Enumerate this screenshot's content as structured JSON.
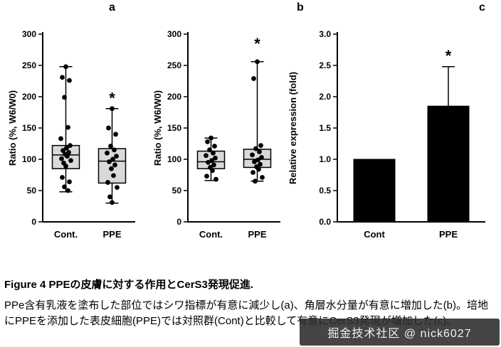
{
  "chart_data": [
    {
      "type": "box",
      "panel_label": "a",
      "ylabel": "Ratio (%, W6/W0)",
      "ylim": [
        0,
        300
      ],
      "yticks": [
        0,
        50,
        100,
        150,
        200,
        250,
        300
      ],
      "ytick_labels": [
        "0",
        "50",
        "100",
        "150",
        "200",
        "250",
        "300"
      ],
      "categories": [
        "Cont.",
        "PPE"
      ],
      "box_fill": "#d9d9d9",
      "boxes": [
        {
          "q1": 85,
          "median": 107,
          "q3": 122,
          "whisker_low": 48,
          "whisker_high": 248,
          "points": [
            248,
            231,
            226,
            199,
            151,
            133,
            122,
            118,
            114,
            111,
            108,
            105,
            101,
            98,
            94,
            89,
            71,
            64,
            56,
            50
          ],
          "sig": "",
          "sig_y": 0
        },
        {
          "q1": 62,
          "median": 97,
          "q3": 117,
          "whisker_low": 30,
          "whisker_high": 181,
          "points": [
            181,
            150,
            140,
            121,
            115,
            110,
            105,
            100,
            96,
            91,
            85,
            74,
            63,
            55,
            40,
            31
          ],
          "sig": "*",
          "sig_y": 196
        }
      ]
    },
    {
      "type": "box",
      "panel_label": "b",
      "ylabel": "Ratio (%, W6/W0)",
      "ylim": [
        0,
        300
      ],
      "yticks": [
        0,
        50,
        100,
        150,
        200,
        250,
        300
      ],
      "ytick_labels": [
        "0",
        "50",
        "100",
        "150",
        "200",
        "250",
        "300"
      ],
      "categories": [
        "Cont.",
        "PPE"
      ],
      "box_fill": "#d9d9d9",
      "boxes": [
        {
          "q1": 85,
          "median": 96,
          "q3": 113,
          "whisker_low": 66,
          "whisker_high": 134,
          "points": [
            134,
            128,
            121,
            115,
            110,
            106,
            102,
            98,
            95,
            91,
            87,
            82,
            73,
            68
          ],
          "sig": "",
          "sig_y": 0
        },
        {
          "q1": 87,
          "median": 100,
          "q3": 116,
          "whisker_low": 65,
          "whisker_high": 256,
          "points": [
            256,
            229,
            122,
            117,
            112,
            107,
            103,
            99,
            96,
            92,
            88,
            84,
            79,
            71,
            65
          ],
          "sig": "*",
          "sig_y": 283
        }
      ]
    },
    {
      "type": "bar",
      "panel_label": "c",
      "ylabel": "Relative expression (fold)",
      "ylim": [
        0,
        3
      ],
      "yticks": [
        0,
        0.5,
        1,
        1.5,
        2,
        2.5,
        3
      ],
      "ytick_labels": [
        "0.0",
        "0.5",
        "1.0",
        "1.5",
        "2.0",
        "2.5",
        "3.0"
      ],
      "categories": [
        "Cont",
        "PPE"
      ],
      "bar_color": "#000000",
      "values": [
        1.0,
        1.85
      ],
      "errors": [
        0,
        0.63
      ],
      "sig": [
        "",
        "*"
      ]
    }
  ],
  "caption": {
    "title": "Figure 4 PPEの皮膚に対する作用とCerS3発現促進.",
    "body": "PPe含有乳液を塗布した部位ではシワ指標が有意に減少し(a)、角層水分量が有意に増加した(b)。培地にPPEを添加した表皮細胞(PPE)では対照群(Cont)と比較して有意にCerS3発現が増加した(c)。"
  },
  "watermark": {
    "text": "掘金技术社区 @ nick6027"
  }
}
